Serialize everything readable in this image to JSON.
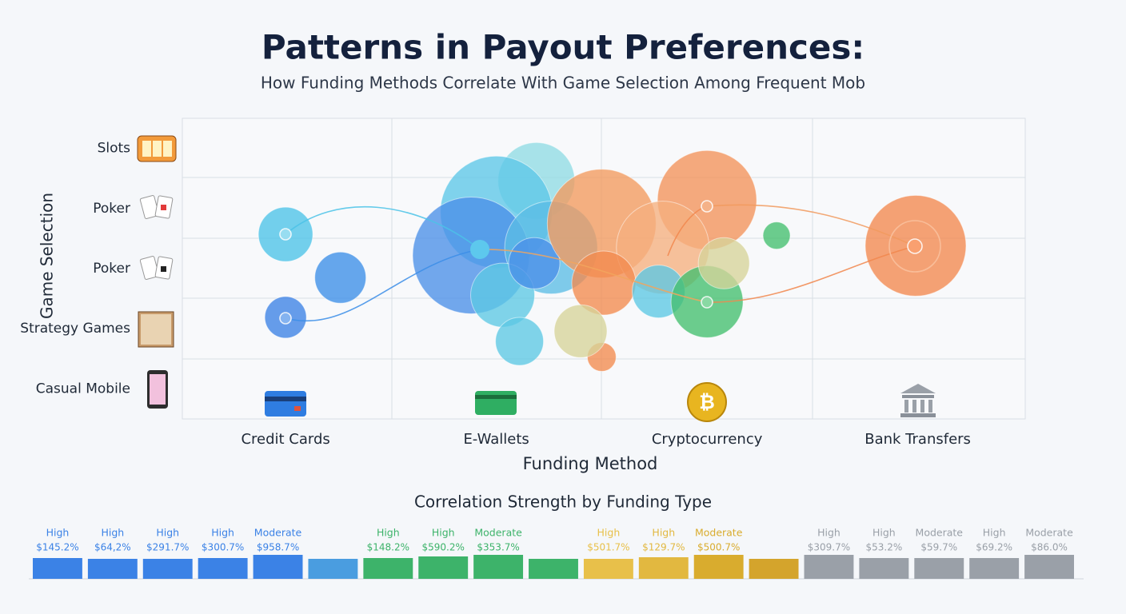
{
  "chart_data": [
    {
      "type": "bubble",
      "title": "Patterns in Payout Preferences:",
      "subtitle": "How Funding Methods Correlate With Game Selection Among Frequent Mob",
      "x_label": "Funding Method",
      "y_label": "Game Selection",
      "xlim": [
        -0.49,
        3.51
      ],
      "ylim": [
        -0.5,
        4.5
      ],
      "xticks": [
        {
          "value": 0,
          "label": "Credit Cards"
        },
        {
          "value": 1,
          "label": "E-Wallets"
        },
        {
          "value": 2,
          "label": "Cryptocurrency"
        },
        {
          "value": 3,
          "label": "Bank Transfers"
        }
      ],
      "yticks": [
        {
          "value": 4,
          "label": "Slots"
        },
        {
          "value": 3,
          "label": "Poker"
        },
        {
          "value": 2,
          "label": "Poker"
        },
        {
          "value": 1,
          "label": "Strategy Games"
        },
        {
          "value": 0,
          "label": "Casual Mobile"
        }
      ],
      "x": [
        0,
        0.26,
        0,
        1.19,
        1,
        0.88,
        1.26,
        1.03,
        1.18,
        1.11,
        1.5,
        2.0,
        1.79,
        1.51,
        1.77,
        2.0,
        2.08,
        2.33,
        2.99,
        1.5,
        1.4
      ],
      "y": [
        2.57,
        1.85,
        1.19,
        3.46,
        2.94,
        2.22,
        2.35,
        1.56,
        2.09,
        0.79,
        2.75,
        3.14,
        2.35,
        1.76,
        1.62,
        1.45,
        2.09,
        2.55,
        2.38,
        0.53,
        0.96
      ],
      "sizes": [
        34,
        32,
        26,
        48,
        70,
        73,
        58,
        40,
        32,
        30,
        68,
        62,
        58,
        40,
        33,
        45,
        32,
        17,
        63,
        18,
        33
      ],
      "colors": [
        "#4cc3e8",
        "#3b8ee8",
        "#3b82e6",
        "#8fdbe4",
        "#5cc7e8",
        "#4a8fe8",
        "#5bbde6",
        "#5cc8e4",
        "#4a8fe8",
        "#5cc8e4",
        "#f29a5e",
        "#f2925a",
        "#f5b07f",
        "#f28a4e",
        "#5cc8e4",
        "#43bf6e",
        "#d6d39a",
        "#43bf6e",
        "#f2884e",
        "#f28a4e",
        "#d6d39a"
      ],
      "grid": true
    },
    {
      "type": "bar",
      "title": "Correlation Strength by Funding Type",
      "ylim": [
        0,
        30
      ],
      "values": [
        26,
        25,
        25,
        26,
        30,
        25,
        26,
        28,
        30,
        25,
        25,
        27,
        30,
        25,
        30,
        26,
        26,
        26,
        30
      ],
      "colors": [
        "#3b82e6",
        "#3b82e6",
        "#3b82e6",
        "#3b82e6",
        "#3b82e6",
        "#4a9de0",
        "#3db36a",
        "#3db36a",
        "#3db36a",
        "#3db36a",
        "#e8c04a",
        "#e2b840",
        "#d9ac2e",
        "#d4a42c",
        "#9aa0a8",
        "#9aa0a8",
        "#9aa0a8",
        "#9aa0a8",
        "#9aa0a8"
      ],
      "strength": [
        "High",
        "High",
        "High",
        "High",
        "Moderate",
        null,
        "High",
        "High",
        "Moderate",
        null,
        "High",
        "High",
        "Moderate",
        null,
        "High",
        "High",
        "Moderate",
        "High",
        "Moderate"
      ],
      "amounts": [
        "$145.2%",
        "$64,2%",
        "$291.7%",
        "$300.7%",
        "$958.7%",
        null,
        "$148.2%",
        "$590.2%",
        "$353.7%",
        null,
        "$501.7%",
        "$129.7%",
        "$500.7%",
        null,
        "$309.7%",
        "$53.2%",
        "$59.7%",
        "$69.2%",
        "$86.0%"
      ]
    }
  ]
}
